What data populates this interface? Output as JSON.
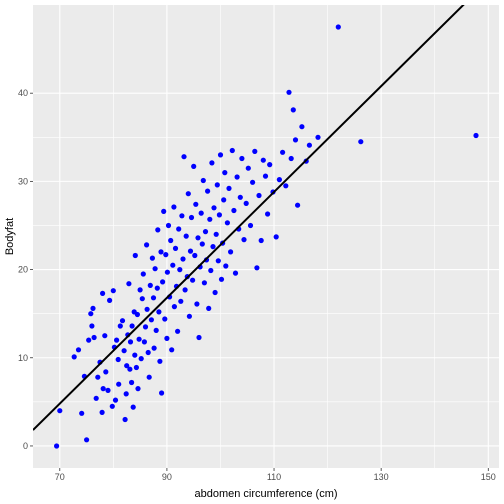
{
  "chart_data": {
    "type": "scatter",
    "title": "",
    "xlabel": "abdomen circumference (cm)",
    "ylabel": "Bodyfat",
    "xlim": [
      65.0,
      152.0
    ],
    "ylim": [
      -2.5,
      50.0
    ],
    "xticks": [
      70,
      90,
      110,
      130,
      150
    ],
    "yticks": [
      0,
      10,
      20,
      30,
      40
    ],
    "grid": true,
    "legend": "none",
    "point_color": "#0000ff",
    "line_color": "#000000",
    "panel_color": "#ebebeb",
    "grid_color": "#ffffff",
    "fit_line": {
      "x": [
        65.0,
        152.0
      ],
      "y": [
        1.8,
        54.0
      ]
    },
    "points": [
      [
        69.4,
        0.0
      ],
      [
        70.0,
        4.0
      ],
      [
        72.7,
        10.1
      ],
      [
        73.5,
        10.9
      ],
      [
        74.1,
        3.7
      ],
      [
        74.6,
        7.9
      ],
      [
        75.0,
        0.7
      ],
      [
        75.4,
        12.0
      ],
      [
        75.8,
        15.0
      ],
      [
        76.0,
        13.6
      ],
      [
        76.2,
        15.6
      ],
      [
        76.4,
        12.3
      ],
      [
        76.8,
        5.4
      ],
      [
        77.1,
        7.8
      ],
      [
        77.5,
        9.5
      ],
      [
        77.9,
        3.8
      ],
      [
        78.0,
        17.3
      ],
      [
        78.1,
        6.5
      ],
      [
        78.4,
        12.5
      ],
      [
        78.6,
        8.4
      ],
      [
        79.0,
        6.3
      ],
      [
        79.3,
        16.5
      ],
      [
        79.8,
        4.5
      ],
      [
        80.0,
        17.6
      ],
      [
        80.2,
        11.2
      ],
      [
        80.4,
        5.2
      ],
      [
        80.6,
        12.0
      ],
      [
        80.9,
        9.8
      ],
      [
        81.0,
        7.0
      ],
      [
        81.3,
        13.6
      ],
      [
        81.7,
        14.2
      ],
      [
        82.0,
        10.8
      ],
      [
        82.2,
        3.0
      ],
      [
        82.4,
        5.9
      ],
      [
        82.5,
        9.1
      ],
      [
        82.7,
        12.6
      ],
      [
        82.9,
        18.4
      ],
      [
        83.1,
        8.7
      ],
      [
        83.2,
        11.8
      ],
      [
        83.4,
        7.2
      ],
      [
        83.5,
        13.6
      ],
      [
        83.7,
        4.4
      ],
      [
        83.9,
        15.2
      ],
      [
        84.0,
        10.3
      ],
      [
        84.1,
        21.6
      ],
      [
        84.3,
        8.9
      ],
      [
        84.5,
        14.9
      ],
      [
        84.6,
        6.5
      ],
      [
        84.8,
        12.1
      ],
      [
        85.0,
        17.7
      ],
      [
        85.2,
        9.9
      ],
      [
        85.4,
        16.7
      ],
      [
        85.6,
        19.5
      ],
      [
        85.8,
        11.8
      ],
      [
        86.0,
        13.5
      ],
      [
        86.2,
        22.8
      ],
      [
        86.3,
        15.5
      ],
      [
        86.5,
        10.6
      ],
      [
        86.7,
        7.8
      ],
      [
        86.9,
        18.2
      ],
      [
        87.1,
        14.3
      ],
      [
        87.3,
        21.3
      ],
      [
        87.5,
        16.8
      ],
      [
        87.6,
        11.1
      ],
      [
        87.8,
        20.1
      ],
      [
        88.0,
        13.1
      ],
      [
        88.2,
        17.9
      ],
      [
        88.3,
        24.5
      ],
      [
        88.5,
        15.2
      ],
      [
        88.7,
        9.6
      ],
      [
        88.9,
        22.0
      ],
      [
        89.0,
        6.0
      ],
      [
        89.2,
        18.6
      ],
      [
        89.4,
        26.6
      ],
      [
        89.6,
        14.4
      ],
      [
        89.8,
        21.7
      ],
      [
        90.0,
        12.2
      ],
      [
        90.1,
        19.7
      ],
      [
        90.3,
        25.0
      ],
      [
        90.5,
        16.9
      ],
      [
        90.7,
        23.3
      ],
      [
        90.9,
        10.9
      ],
      [
        91.1,
        20.5
      ],
      [
        91.3,
        27.1
      ],
      [
        91.4,
        15.8
      ],
      [
        91.6,
        22.4
      ],
      [
        91.8,
        18.1
      ],
      [
        92.0,
        13.0
      ],
      [
        92.2,
        24.6
      ],
      [
        92.4,
        20.0
      ],
      [
        92.6,
        16.4
      ],
      [
        92.8,
        26.1
      ],
      [
        93.0,
        21.2
      ],
      [
        93.2,
        32.8
      ],
      [
        93.4,
        17.7
      ],
      [
        93.6,
        23.8
      ],
      [
        93.8,
        19.2
      ],
      [
        94.0,
        28.6
      ],
      [
        94.2,
        14.7
      ],
      [
        94.4,
        22.1
      ],
      [
        94.6,
        25.9
      ],
      [
        94.8,
        18.8
      ],
      [
        95.0,
        31.7
      ],
      [
        95.2,
        21.6
      ],
      [
        95.4,
        27.4
      ],
      [
        95.6,
        16.1
      ],
      [
        95.8,
        23.6
      ],
      [
        96.0,
        12.3
      ],
      [
        96.2,
        20.3
      ],
      [
        96.4,
        26.4
      ],
      [
        96.6,
        22.9
      ],
      [
        96.8,
        30.1
      ],
      [
        97.0,
        18.5
      ],
      [
        97.2,
        24.3
      ],
      [
        97.4,
        21.1
      ],
      [
        97.6,
        28.9
      ],
      [
        97.8,
        15.6
      ],
      [
        98.0,
        25.7
      ],
      [
        98.2,
        19.9
      ],
      [
        98.4,
        32.1
      ],
      [
        98.6,
        22.6
      ],
      [
        98.8,
        27.0
      ],
      [
        99.0,
        17.4
      ],
      [
        99.2,
        24.0
      ],
      [
        99.4,
        29.6
      ],
      [
        99.6,
        21.0
      ],
      [
        99.8,
        26.2
      ],
      [
        100.0,
        33.0
      ],
      [
        100.2,
        18.9
      ],
      [
        100.4,
        23.0
      ],
      [
        100.6,
        27.9
      ],
      [
        100.8,
        31.0
      ],
      [
        101.0,
        20.4
      ],
      [
        101.3,
        25.3
      ],
      [
        101.6,
        29.2
      ],
      [
        101.9,
        22.0
      ],
      [
        102.2,
        33.5
      ],
      [
        102.5,
        26.7
      ],
      [
        102.8,
        19.6
      ],
      [
        103.1,
        30.5
      ],
      [
        103.4,
        24.6
      ],
      [
        103.7,
        28.2
      ],
      [
        104.0,
        32.6
      ],
      [
        104.4,
        23.4
      ],
      [
        104.8,
        27.5
      ],
      [
        105.2,
        31.5
      ],
      [
        105.6,
        25.0
      ],
      [
        106.0,
        29.9
      ],
      [
        106.4,
        33.4
      ],
      [
        106.8,
        20.2
      ],
      [
        107.2,
        28.4
      ],
      [
        107.6,
        23.3
      ],
      [
        108.0,
        32.4
      ],
      [
        108.4,
        30.6
      ],
      [
        108.8,
        26.3
      ],
      [
        109.2,
        31.9
      ],
      [
        109.8,
        28.8
      ],
      [
        110.4,
        23.7
      ],
      [
        111.0,
        30.2
      ],
      [
        111.6,
        33.3
      ],
      [
        112.2,
        29.5
      ],
      [
        112.8,
        40.1
      ],
      [
        113.2,
        32.6
      ],
      [
        113.6,
        38.1
      ],
      [
        114.0,
        34.7
      ],
      [
        114.4,
        27.3
      ],
      [
        115.2,
        36.2
      ],
      [
        116.0,
        32.3
      ],
      [
        116.6,
        34.1
      ],
      [
        118.2,
        35.0
      ],
      [
        122.0,
        47.5
      ],
      [
        126.2,
        34.5
      ],
      [
        147.7,
        35.2
      ]
    ]
  }
}
